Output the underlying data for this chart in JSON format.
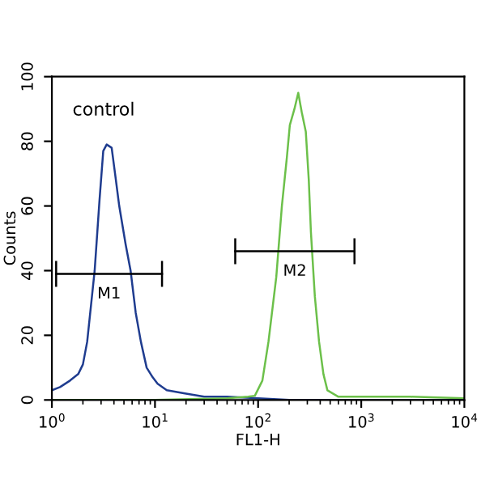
{
  "chart_data": {
    "type": "line",
    "xlabel": "FL1-H",
    "ylabel": "Counts",
    "log": "x",
    "xlim": [
      1,
      10000
    ],
    "ylim": [
      0,
      100
    ],
    "xticks": [
      {
        "value": 1,
        "label": "10$^{0}$"
      },
      {
        "value": 10,
        "label": "10$^{1}$"
      },
      {
        "value": 100,
        "label": "10$^{2}$"
      },
      {
        "value": 1000,
        "label": "10$^{3}$"
      },
      {
        "value": 10000,
        "label": "10$^{4}$"
      }
    ],
    "yticks": [
      0,
      20,
      40,
      60,
      80,
      100
    ],
    "grid": false,
    "marker": "none",
    "line_style": "solid",
    "series": [
      {
        "color": "#1f3c8f",
        "x": [
          1,
          1.2,
          1.5,
          1.8,
          2.0,
          2.2,
          2.6,
          2.9,
          3.15,
          3.4,
          3.8,
          4.1,
          4.5,
          5.2,
          5.8,
          6.5,
          7.3,
          8.3,
          9.5,
          10.6,
          13,
          19.5,
          30,
          50,
          100,
          200,
          1000,
          10000
        ],
        "values": [
          3,
          4,
          6,
          8,
          11,
          18,
          40,
          62,
          77,
          79,
          78,
          70,
          60,
          48,
          40,
          27,
          18,
          10,
          7,
          5,
          3,
          2,
          1,
          1,
          0.5,
          0,
          0,
          0
        ]
      },
      {
        "color": "#6cc04a",
        "x": [
          1,
          10,
          50,
          80,
          93,
          110,
          126,
          150,
          170,
          190,
          203,
          225,
          245,
          265,
          290,
          310,
          325,
          355,
          390,
          430,
          470,
          600,
          1000,
          3000,
          10000
        ],
        "values": [
          0,
          0,
          0.5,
          1,
          1.3,
          6,
          18,
          38,
          60,
          75,
          85,
          90,
          95,
          89,
          83,
          68,
          52,
          32,
          18,
          8,
          3,
          1,
          1,
          1,
          0.5
        ]
      },
      {
        "type": "line",
        "name": "M1",
        "color": "#000000",
        "x": [
          1.1,
          11.7
        ],
        "values": [
          39,
          39
        ],
        "errors": [
          4,
          4
        ]
      },
      {
        "type": "line",
        "name": "M2",
        "color": "#000000",
        "x": [
          60,
          860
        ],
        "values": [
          46,
          46
        ],
        "errors": [
          4,
          4
        ]
      }
    ],
    "annotations": [
      "control"
    ]
  }
}
